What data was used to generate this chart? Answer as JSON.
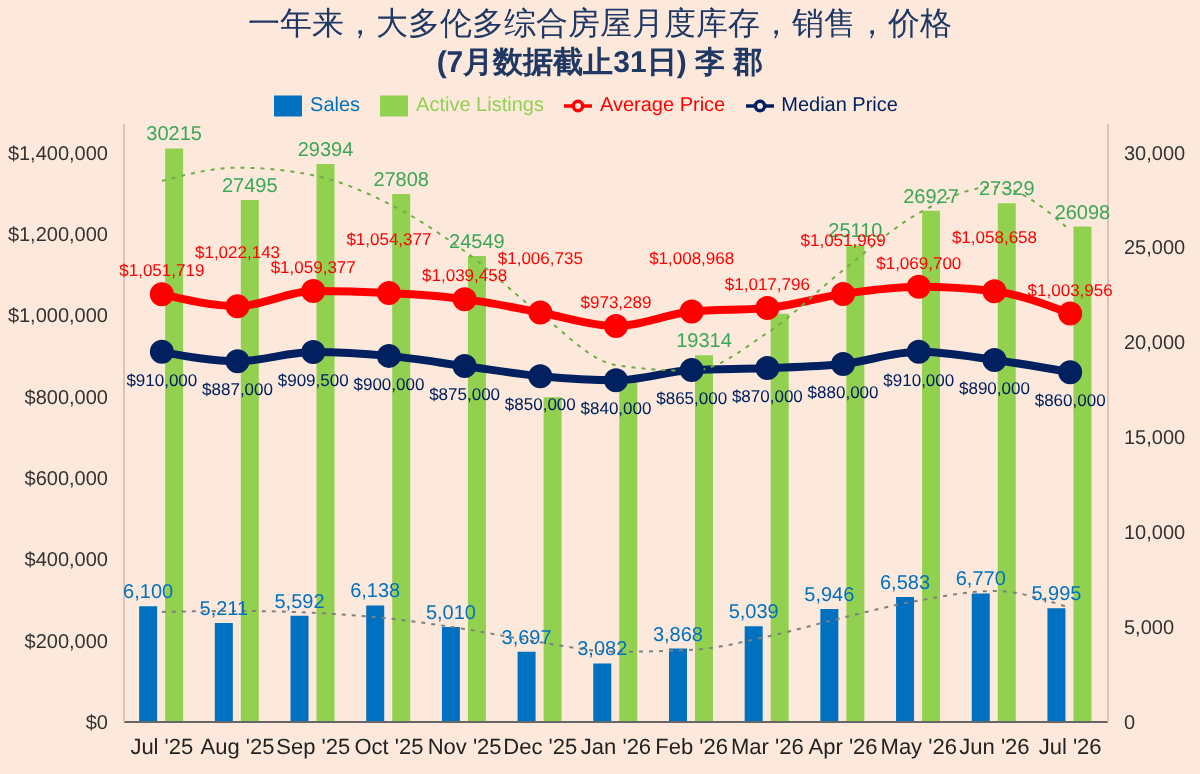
{
  "chart_data": {
    "type": "bar",
    "title": "一年来，大多伦多综合房屋月度库存，销售，价格",
    "subtitle": "(7月数据截止31日) 李 郡",
    "categories": [
      "Jul '25",
      "Aug '25",
      "Sep '25",
      "Oct '25",
      "Nov '25",
      "Dec '25",
      "Jan '26",
      "Feb '26",
      "Mar '26",
      "Apr '26",
      "May '26",
      "Jun '26",
      "Jul '26"
    ],
    "series": [
      {
        "name": "Sales",
        "axis": "y2",
        "color": "#0070c0",
        "values": [
          6100,
          5211,
          5592,
          6138,
          5010,
          3697,
          3082,
          3868,
          5039,
          5946,
          6583,
          6770,
          5995
        ],
        "value_labels": [
          "6,100",
          "5,211",
          "5,592",
          "6,138",
          "5,010",
          "3,697",
          "3,082",
          "3,868",
          "5,039",
          "5,946",
          "6,583",
          "6,770",
          "5,995"
        ]
      },
      {
        "name": "Active Listings",
        "axis": "y2",
        "color": "#92d050",
        "values": [
          30215,
          27495,
          29394,
          27808,
          24549,
          17100,
          18000,
          19314,
          21500,
          25110,
          26927,
          27329,
          26098
        ],
        "value_labels": [
          "30215",
          "27495",
          "29394",
          "27808",
          "24549",
          null,
          null,
          "19314",
          null,
          "25110",
          "26927",
          "27329",
          "26098"
        ]
      },
      {
        "name": "Average Price",
        "type": "line",
        "axis": "y",
        "color": "#ff0000",
        "marker": "circle",
        "values": [
          1051719,
          1022143,
          1059377,
          1054377,
          1039458,
          1006735,
          973289,
          1008968,
          1017796,
          1051969,
          1069700,
          1058658,
          1003956
        ],
        "value_labels": [
          "$1,051,719",
          "$1,022,143",
          "$1,059,377",
          "$1,054,377",
          "$1,039,458",
          "$1,006,735",
          "$973,289",
          "$1,008,968",
          "$1,017,796",
          "$1,051,969",
          "$1,069,700",
          "$1,058,658",
          "$1,003,956"
        ]
      },
      {
        "name": "Median Price",
        "type": "line",
        "axis": "y",
        "color": "#002060",
        "marker": "circle",
        "values": [
          910000,
          887000,
          909500,
          900000,
          875000,
          850000,
          840000,
          865000,
          870000,
          880000,
          910000,
          890000,
          860000
        ],
        "value_labels": [
          "$910,000",
          "$887,000",
          "$909,500",
          "$900,000",
          "$875,000",
          "$850,000",
          "$840,000",
          "$865,000",
          "$870,000",
          "$880,000",
          "$910,000",
          "$890,000",
          "$860,000"
        ]
      },
      {
        "type": "line",
        "axis": "y2",
        "color": "#70ad47",
        "line_style": "dotted",
        "marker": "none",
        "values": [
          28500,
          29200,
          28800,
          27300,
          24800,
          21500,
          18800,
          18500,
          20500,
          23800,
          26800,
          28200,
          25900
        ]
      },
      {
        "type": "line",
        "axis": "y2",
        "color": "#7f7f7f",
        "line_style": "dotted",
        "marker": "none",
        "values": [
          5800,
          5850,
          5750,
          5450,
          4900,
          4200,
          3700,
          3800,
          4500,
          5500,
          6400,
          6900,
          6000
        ]
      }
    ],
    "ylim": [
      0,
      1470000
    ],
    "yticks": [
      {
        "value": 0,
        "label": "$0"
      },
      {
        "value": 200000,
        "label": "$200,000"
      },
      {
        "value": 400000,
        "label": "$400,000"
      },
      {
        "value": 600000,
        "label": "$600,000"
      },
      {
        "value": 800000,
        "label": "$800,000"
      },
      {
        "value": 1000000,
        "label": "$1,000,000"
      },
      {
        "value": 1200000,
        "label": "$1,200,000"
      },
      {
        "value": 1400000,
        "label": "$1,400,000"
      }
    ],
    "y2lim": [
      0,
      31500
    ],
    "y2ticks": [
      0,
      {
        "value": 5000,
        "label": "5,000"
      },
      {
        "value": 10000,
        "label": "10,000"
      },
      {
        "value": 15000,
        "label": "15,000"
      },
      {
        "value": 20000,
        "label": "20,000"
      },
      {
        "value": 25000,
        "label": "25,000"
      },
      {
        "value": 30000,
        "label": "30,000"
      }
    ],
    "legend": "top",
    "grid": false
  }
}
